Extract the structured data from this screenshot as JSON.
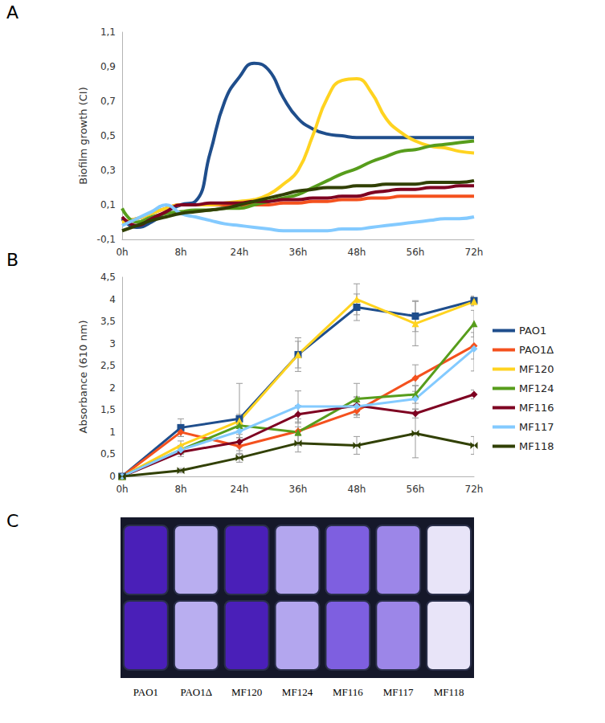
{
  "chart_data": [
    {
      "type": "line",
      "panel_label": "A",
      "y_label": "Biofilm growth (CI)",
      "grid": false,
      "smooth": true,
      "categories": [
        "0h",
        null,
        null,
        null,
        "8h",
        null,
        null,
        null,
        "24h",
        null,
        null,
        null,
        "36h",
        null,
        null,
        null,
        "48h",
        null,
        null,
        null,
        "56h",
        null,
        null,
        null,
        "72h"
      ],
      "ylim": [
        -0.1,
        1.1
      ],
      "yticks": [
        {
          "value": -0.1,
          "label": "-0,1"
        },
        {
          "value": 0.1,
          "label": "0,1"
        },
        {
          "value": 0.3,
          "label": "0,3"
        },
        {
          "value": 0.5,
          "label": "0,5"
        },
        {
          "value": 0.7,
          "label": "0,7"
        },
        {
          "value": 0.9,
          "label": "0,9"
        },
        {
          "value": 1.1,
          "label": "1,1"
        }
      ],
      "series": [
        {
          "name": "PAO1",
          "color": "#1f4e8c",
          "values": [
            0.02,
            -0.03,
            0.0,
            0.06,
            0.1,
            0.12,
            0.4,
            0.7,
            0.84,
            0.92,
            0.88,
            0.72,
            0.6,
            0.54,
            0.51,
            0.5,
            0.49,
            0.49,
            0.49,
            0.49,
            0.49,
            0.49,
            0.49,
            0.49,
            0.49
          ]
        },
        {
          "name": "PAO1Δ",
          "color": "#f4511e",
          "values": [
            0.0,
            0.02,
            0.05,
            0.08,
            0.1,
            0.1,
            0.1,
            0.1,
            0.1,
            0.1,
            0.1,
            0.11,
            0.11,
            0.12,
            0.12,
            0.13,
            0.13,
            0.14,
            0.14,
            0.15,
            0.15,
            0.15,
            0.15,
            0.15,
            0.15
          ]
        },
        {
          "name": "MF120",
          "color": "#ffd320",
          "values": [
            0.0,
            0.02,
            0.05,
            0.08,
            0.1,
            0.1,
            0.1,
            0.11,
            0.12,
            0.13,
            0.16,
            0.22,
            0.3,
            0.5,
            0.72,
            0.82,
            0.83,
            0.75,
            0.6,
            0.52,
            0.47,
            0.44,
            0.43,
            0.41,
            0.4
          ]
        },
        {
          "name": "MF124",
          "color": "#579d1c",
          "values": [
            0.08,
            0.0,
            0.03,
            0.05,
            0.06,
            0.07,
            0.07,
            0.08,
            0.08,
            0.1,
            0.12,
            0.14,
            0.16,
            0.2,
            0.24,
            0.28,
            0.31,
            0.35,
            0.38,
            0.41,
            0.42,
            0.44,
            0.45,
            0.46,
            0.47
          ]
        },
        {
          "name": "MF116",
          "color": "#7e0021",
          "values": [
            0.03,
            -0.02,
            0.02,
            0.06,
            0.1,
            0.1,
            0.11,
            0.11,
            0.11,
            0.12,
            0.12,
            0.13,
            0.13,
            0.14,
            0.14,
            0.15,
            0.15,
            0.17,
            0.18,
            0.19,
            0.19,
            0.2,
            0.2,
            0.21,
            0.21
          ]
        },
        {
          "name": "MF117",
          "color": "#83caff",
          "values": [
            -0.02,
            0.02,
            0.06,
            0.1,
            0.05,
            0.03,
            0.01,
            -0.01,
            -0.02,
            -0.03,
            -0.04,
            -0.05,
            -0.05,
            -0.05,
            -0.05,
            -0.04,
            -0.04,
            -0.03,
            -0.02,
            -0.01,
            0.0,
            0.01,
            0.02,
            0.02,
            0.03
          ]
        },
        {
          "name": "MF118",
          "color": "#314004",
          "values": [
            -0.05,
            -0.02,
            0.01,
            0.03,
            0.05,
            0.06,
            0.07,
            0.08,
            0.1,
            0.12,
            0.14,
            0.16,
            0.18,
            0.19,
            0.2,
            0.2,
            0.21,
            0.21,
            0.22,
            0.22,
            0.22,
            0.23,
            0.23,
            0.23,
            0.24
          ]
        }
      ]
    },
    {
      "type": "line",
      "panel_label": "B",
      "y_label": "Absorbance (610 nm)",
      "grid": false,
      "legend": "right",
      "categories": [
        "0h",
        "8h",
        "24h",
        "36h",
        "48h",
        "56h",
        "72h"
      ],
      "ylim": [
        0,
        4.5
      ],
      "yticks": [
        0,
        {
          "value": 0.5,
          "label": "0,5"
        },
        1,
        {
          "value": 1.5,
          "label": "1,5"
        },
        2,
        {
          "value": 2.5,
          "label": "2,5"
        },
        3,
        {
          "value": 3.5,
          "label": "3,5"
        },
        4,
        {
          "value": 4.5,
          "label": "4,5"
        }
      ],
      "series": [
        {
          "name": "PAO1",
          "color": "#1f4e8c",
          "marker": "square",
          "values": [
            0,
            1.1,
            1.3,
            2.75,
            3.82,
            3.62,
            3.97
          ],
          "errors": [
            0,
            0.2,
            0.8,
            0.38,
            0.3,
            0.35,
            0.1
          ]
        },
        {
          "name": "PAO1Δ",
          "color": "#f4511e",
          "marker": "diamond",
          "values": [
            0,
            1.0,
            0.68,
            1.02,
            1.48,
            2.22,
            2.95
          ],
          "errors": [
            0,
            0.1,
            0.1,
            0.1,
            0.15,
            0.3,
            0.3
          ]
        },
        {
          "name": "MF120",
          "color": "#ffd320",
          "marker": "triangle",
          "values": [
            0,
            0.7,
            1.25,
            2.75,
            4.0,
            3.45,
            3.95
          ],
          "errors": [
            0,
            0.1,
            0.15,
            0.3,
            0.35,
            0.5,
            0.1
          ]
        },
        {
          "name": "MF124",
          "color": "#579d1c",
          "marker": "triangle",
          "values": [
            0,
            0.6,
            1.15,
            1.0,
            1.75,
            1.85,
            3.45
          ],
          "errors": [
            0,
            0.1,
            0.2,
            0.3,
            0.35,
            0.2,
            0.3
          ]
        },
        {
          "name": "MF116",
          "color": "#7e0021",
          "marker": "diamond",
          "values": [
            0,
            0.55,
            0.78,
            1.4,
            1.6,
            1.42,
            1.85
          ],
          "errors": [
            0,
            0.1,
            0.1,
            0.2,
            0.2,
            0.1,
            0.1
          ]
        },
        {
          "name": "MF117",
          "color": "#83caff",
          "marker": "diamond",
          "values": [
            0,
            0.6,
            1.02,
            1.58,
            1.58,
            1.75,
            2.88
          ],
          "errors": [
            0,
            0.1,
            0.15,
            0.35,
            0.2,
            0.3,
            0.5
          ]
        },
        {
          "name": "MF118",
          "color": "#314004",
          "marker": "bowtie",
          "values": [
            0,
            0.13,
            0.42,
            0.75,
            0.7,
            0.97,
            0.7
          ],
          "errors": [
            0,
            0.05,
            0.1,
            0.2,
            0.2,
            0.55,
            0.2
          ]
        }
      ]
    },
    {
      "type": "wells",
      "panel_label": "C",
      "categories": [
        "PAO1",
        "PAO1Δ",
        "MF120",
        "MF124",
        "MF116",
        "MF117",
        "MF118"
      ],
      "colors": [
        "#4a1fb8",
        "#b9aef0",
        "#4a1fb8",
        "#b3a6ee",
        "#7e5fe0",
        "#9c86e8",
        "#e8e4f8"
      ]
    }
  ]
}
